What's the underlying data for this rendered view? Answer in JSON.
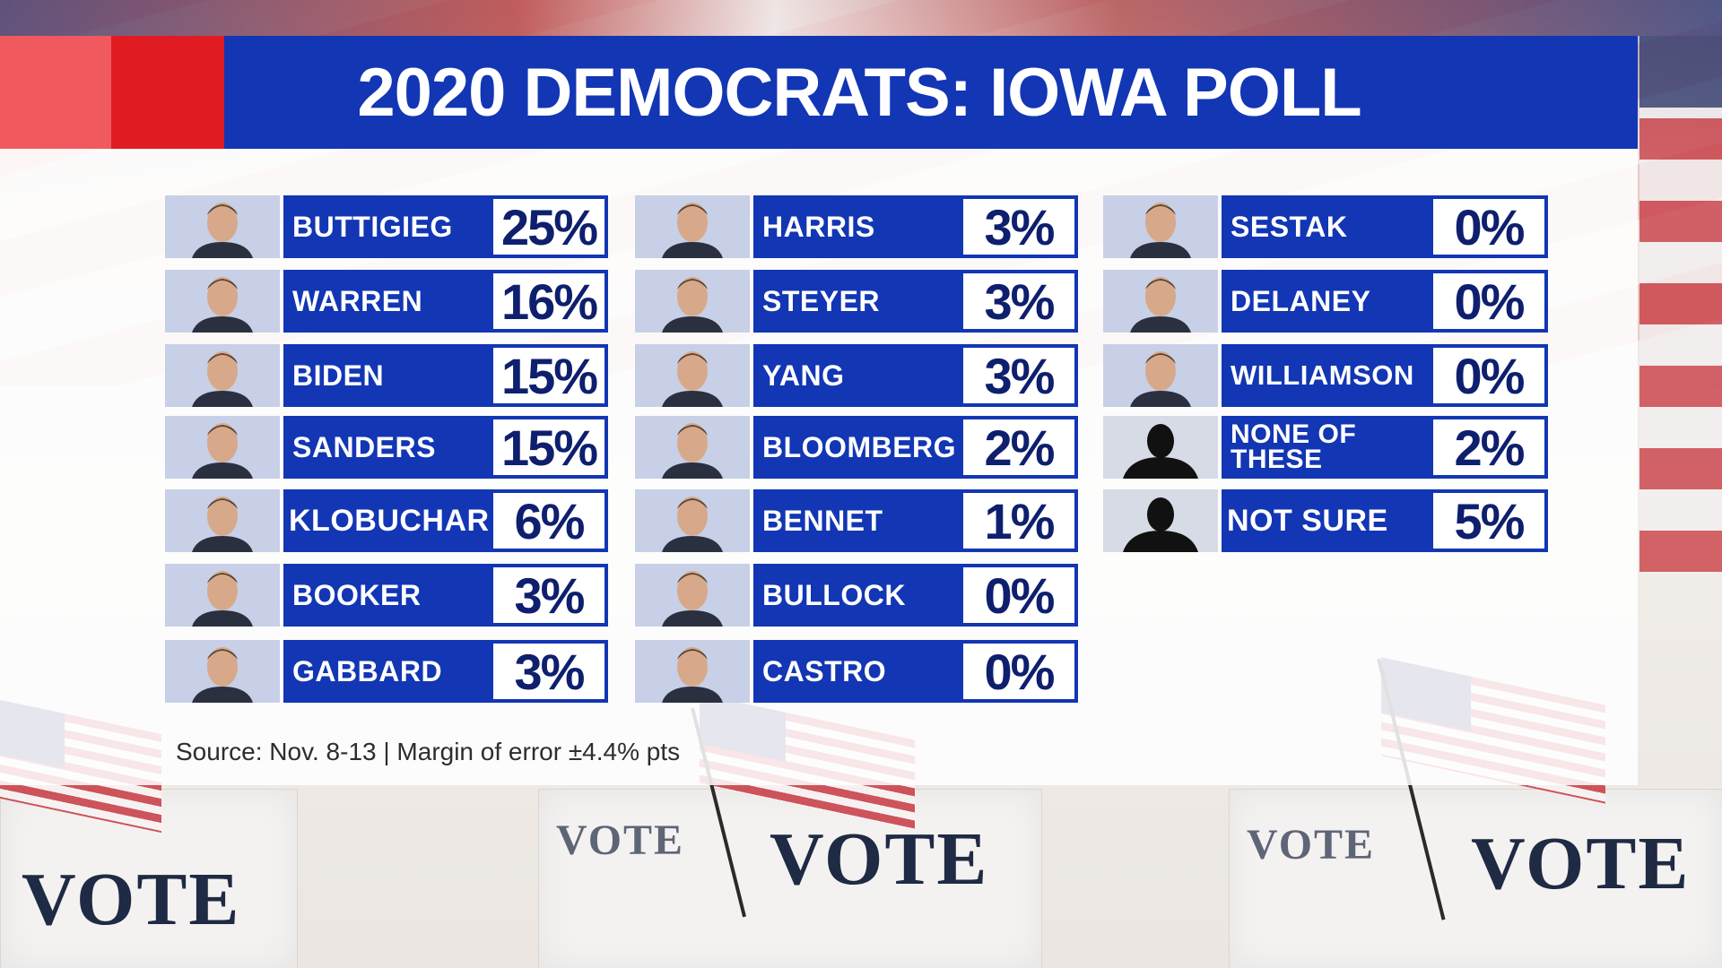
{
  "title": "2020 DEMOCRATS: IOWA POLL",
  "source": "Source: Nov. 8-13 | Margin of error ±4.4% pts",
  "background": {
    "vote_label": "VOTE"
  },
  "colors": {
    "header_blue": "#1236b4",
    "header_red": "#e01b22",
    "header_pink": "#f0595e",
    "value_text": "#0e1f6e"
  },
  "columns": [
    {
      "rows": [
        {
          "name": "BUTTIGIEG",
          "value": "25%"
        },
        {
          "name": "WARREN",
          "value": "16%"
        },
        {
          "name": "BIDEN",
          "value": "15%"
        },
        {
          "name": "SANDERS",
          "value": "15%"
        },
        {
          "name": "KLOBUCHAR",
          "value": "6%"
        },
        {
          "name": "BOOKER",
          "value": "3%"
        },
        {
          "name": "GABBARD",
          "value": "3%"
        }
      ]
    },
    {
      "rows": [
        {
          "name": "HARRIS",
          "value": "3%"
        },
        {
          "name": "STEYER",
          "value": "3%"
        },
        {
          "name": "YANG",
          "value": "3%"
        },
        {
          "name": "BLOOMBERG",
          "value": "2%"
        },
        {
          "name": "BENNET",
          "value": "1%"
        },
        {
          "name": "BULLOCK",
          "value": "0%"
        },
        {
          "name": "CASTRO",
          "value": "0%"
        }
      ]
    },
    {
      "rows": [
        {
          "name": "SESTAK",
          "value": "0%"
        },
        {
          "name": "DELANEY",
          "value": "0%"
        },
        {
          "name": "WILLIAMSON",
          "value": "0%"
        },
        {
          "name": "NONE OF THESE",
          "value": "2%"
        },
        {
          "name": "NOT SURE",
          "value": "5%"
        }
      ]
    }
  ],
  "chart_data": {
    "type": "table",
    "title": "2020 DEMOCRATS: IOWA POLL",
    "categories": [
      "BUTTIGIEG",
      "WARREN",
      "BIDEN",
      "SANDERS",
      "KLOBUCHAR",
      "BOOKER",
      "GABBARD",
      "HARRIS",
      "STEYER",
      "YANG",
      "BLOOMBERG",
      "BENNET",
      "BULLOCK",
      "CASTRO",
      "SESTAK",
      "DELANEY",
      "WILLIAMSON",
      "NONE OF THESE",
      "NOT SURE"
    ],
    "values": [
      25,
      16,
      15,
      15,
      6,
      3,
      3,
      3,
      3,
      3,
      2,
      1,
      0,
      0,
      0,
      0,
      0,
      2,
      5
    ],
    "unit": "%"
  }
}
